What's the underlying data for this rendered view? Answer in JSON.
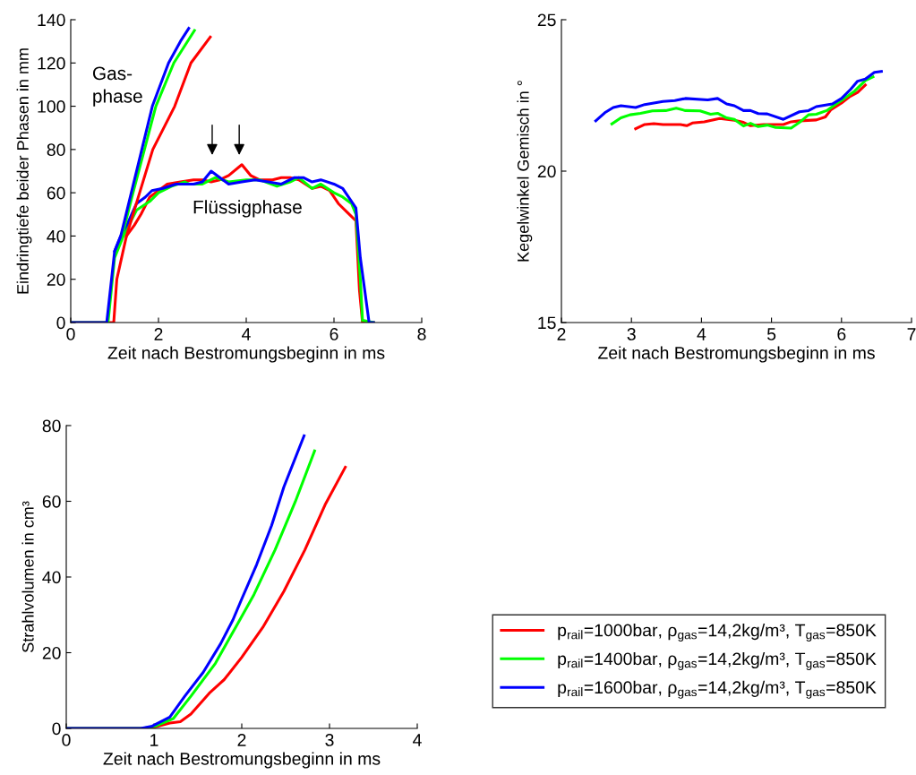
{
  "chart_data": [
    {
      "type": "line",
      "xlabel": "Zeit nach Bestromungsbeginn in ms",
      "ylabel": "Eindringtiefe beider Phasen in mm",
      "xlim": [
        0,
        8
      ],
      "ylim": [
        0,
        140
      ],
      "xticks": [
        0,
        2,
        4,
        6,
        8
      ],
      "yticks": [
        0,
        20,
        40,
        60,
        80,
        100,
        120,
        140
      ],
      "grid": false,
      "legend": false,
      "annotations": [
        "Gas-\nphase",
        "Flüssigphase"
      ],
      "series": [
        {
          "color": "#ff0000",
          "x": [
            0,
            0.98,
            1.05,
            1.27,
            1.45,
            1.6,
            1.8,
            2.0,
            2.2,
            2.5,
            2.8,
            3.0,
            3.2,
            3.4,
            3.6,
            3.9,
            4.1,
            4.3,
            4.6,
            4.8,
            5.0,
            5.2,
            5.5,
            5.7,
            5.9,
            6.1,
            6.3,
            6.5,
            6.58,
            6.65,
            6.9
          ],
          "values": [
            0,
            0,
            20,
            40,
            45,
            50,
            58,
            61,
            64,
            65,
            66,
            66,
            65,
            66,
            68,
            73,
            68,
            66,
            66,
            67,
            67,
            66,
            62,
            63,
            61,
            55,
            51,
            47,
            15,
            0,
            0
          ]
        },
        {
          "color": "#00ff00",
          "x": [
            0,
            0.85,
            1.0,
            1.2,
            1.5,
            1.8,
            2.0,
            2.3,
            2.6,
            2.7,
            3.0,
            3.3,
            3.6,
            4.0,
            4.3,
            4.7,
            5.0,
            5.2,
            5.5,
            5.7,
            6.0,
            6.2,
            6.4,
            6.5,
            6.6,
            6.65,
            6.9
          ],
          "values": [
            0,
            0,
            30,
            40,
            52,
            56,
            60,
            63,
            65,
            64,
            64,
            67,
            65,
            66,
            66,
            63,
            65,
            67,
            62,
            64,
            60,
            58,
            55,
            50,
            20,
            1,
            0
          ]
        },
        {
          "color": "#0000ff",
          "x": [
            0,
            0.82,
            1.0,
            1.14,
            1.3,
            1.5,
            1.7,
            1.85,
            2.1,
            2.4,
            2.8,
            3.0,
            3.2,
            3.4,
            3.6,
            3.9,
            4.2,
            4.5,
            4.8,
            5.1,
            5.3,
            5.5,
            5.7,
            6.0,
            6.2,
            6.5,
            6.6,
            6.8,
            6.9
          ],
          "values": [
            0,
            0,
            33,
            40,
            46,
            55,
            58,
            61,
            62,
            64,
            64,
            65,
            70,
            67,
            64,
            65,
            66,
            65,
            64,
            67,
            67,
            65,
            66,
            64,
            62,
            53,
            30,
            0,
            0
          ]
        },
        {
          "color": "#ff0000",
          "x": [
            1.27,
            1.57,
            1.87,
            2.37,
            2.74,
            3.18
          ],
          "values": [
            40,
            60,
            80,
            100,
            120,
            132
          ]
        },
        {
          "color": "#00ff00",
          "x": [
            1.17,
            1.42,
            1.68,
            1.94,
            2.35,
            2.82
          ],
          "values": [
            40,
            60,
            80,
            100,
            120,
            135
          ]
        },
        {
          "color": "#0000ff",
          "x": [
            1.0,
            1.14,
            1.38,
            1.62,
            1.86,
            2.23,
            2.5,
            2.69
          ],
          "values": [
            33,
            40,
            60,
            80,
            100,
            120,
            130,
            136
          ]
        }
      ]
    },
    {
      "type": "line",
      "xlabel": "Zeit nach Bestromungsbeginn in ms",
      "ylabel": "Kegelwinkel Gemisch in °",
      "xlim": [
        2,
        7
      ],
      "ylim": [
        15,
        25
      ],
      "xticks": [
        2,
        3,
        4,
        5,
        6,
        7
      ],
      "yticks": [
        15,
        20,
        25
      ],
      "grid": false,
      "legend": false,
      "series": [
        {
          "color": "#ff0000",
          "x": [
            3.06,
            3.19,
            3.32,
            3.45,
            3.7,
            3.79,
            3.87,
            4.04,
            4.26,
            4.47,
            4.6,
            4.7,
            4.89,
            5.17,
            5.28,
            5.4,
            5.64,
            5.77,
            5.85,
            6.0,
            6.11,
            6.23,
            6.34
          ],
          "values": [
            21.4,
            21.54,
            21.57,
            21.54,
            21.54,
            21.5,
            21.59,
            21.63,
            21.74,
            21.68,
            21.61,
            21.5,
            21.54,
            21.54,
            21.63,
            21.66,
            21.69,
            21.79,
            22.03,
            22.25,
            22.45,
            22.6,
            22.84
          ]
        },
        {
          "color": "#00ff00",
          "x": [
            2.72,
            2.85,
            2.98,
            3.13,
            3.3,
            3.49,
            3.64,
            3.77,
            3.98,
            4.13,
            4.23,
            4.36,
            4.47,
            4.6,
            4.7,
            4.81,
            4.94,
            5.06,
            5.28,
            5.4,
            5.53,
            5.64,
            5.79,
            5.91,
            6.04,
            6.19,
            6.34,
            6.45
          ],
          "values": [
            21.56,
            21.76,
            21.86,
            21.91,
            21.99,
            22.0,
            22.08,
            22.0,
            21.99,
            21.88,
            21.91,
            21.76,
            21.71,
            21.49,
            21.58,
            21.47,
            21.52,
            21.44,
            21.42,
            21.61,
            21.86,
            21.88,
            22.0,
            22.2,
            22.4,
            22.65,
            22.99,
            23.11
          ]
        },
        {
          "color": "#0000ff",
          "x": [
            2.49,
            2.62,
            2.74,
            2.85,
            3.06,
            3.19,
            3.45,
            3.62,
            3.77,
            4.09,
            4.23,
            4.36,
            4.47,
            4.6,
            4.7,
            4.81,
            4.94,
            5.17,
            5.4,
            5.53,
            5.64,
            5.87,
            6.0,
            6.13,
            6.23,
            6.34,
            6.47,
            6.57
          ],
          "values": [
            21.66,
            21.93,
            22.1,
            22.16,
            22.1,
            22.2,
            22.3,
            22.33,
            22.4,
            22.35,
            22.4,
            22.22,
            22.16,
            22.0,
            22.0,
            21.9,
            21.89,
            21.71,
            21.96,
            22.0,
            22.13,
            22.22,
            22.4,
            22.7,
            22.97,
            23.04,
            23.26,
            23.29
          ]
        }
      ]
    },
    {
      "type": "line",
      "xlabel": "Zeit nach Bestromungsbeginn in ms",
      "ylabel": "Strahlvolumen in cm³",
      "xlim": [
        0,
        4
      ],
      "ylim": [
        0,
        80
      ],
      "xticks": [
        0,
        1,
        2,
        3,
        4
      ],
      "yticks": [
        0,
        20,
        40,
        60,
        80
      ],
      "grid": false,
      "legend": "right",
      "series": [
        {
          "name": "p$_{rail}$=1000bar, ρ$_{gas}$=14,2kg/m³, T$_{gas}$=850K",
          "color": "#ff0000",
          "x": [
            0,
            0.95,
            1.18,
            1.3,
            1.42,
            1.63,
            1.8,
            2.0,
            2.24,
            2.48,
            2.72,
            2.95,
            3.18
          ],
          "values": [
            0,
            0,
            1.4,
            1.8,
            3.8,
            9.3,
            12.9,
            18.8,
            26.7,
            36.2,
            47.2,
            59.1,
            69.0
          ]
        },
        {
          "name": "p$_{rail}$=1400bar, ρ$_{gas}$=14,2kg/m³, T$_{gas}$=850K",
          "color": "#00ff00",
          "x": [
            0,
            0.87,
            1.01,
            1.22,
            1.42,
            1.7,
            1.93,
            2.14,
            2.38,
            2.61,
            2.83
          ],
          "values": [
            0,
            0,
            0.6,
            2.6,
            8.5,
            17.2,
            26.7,
            35.4,
            47.2,
            59.9,
            73.3
          ]
        },
        {
          "name": "p$_{rail}$=1600bar, ρ$_{gas}$=14,2kg/m³, T$_{gas}$=850K",
          "color": "#0000ff",
          "x": [
            0,
            0.85,
            0.98,
            1.18,
            1.35,
            1.56,
            1.76,
            1.9,
            2.0,
            2.17,
            2.34,
            2.48,
            2.71
          ],
          "values": [
            0,
            0,
            0.6,
            3.0,
            8.5,
            14.8,
            22.4,
            28.7,
            34.2,
            43.3,
            53.6,
            63.8,
            77.3
          ]
        }
      ]
    }
  ]
}
